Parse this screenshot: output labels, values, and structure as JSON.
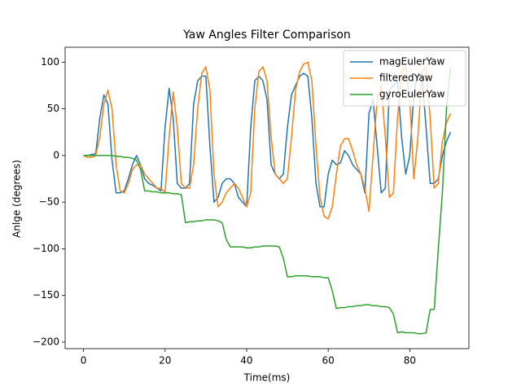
{
  "chart_data": {
    "type": "line",
    "title": "Yaw Angles Filter Comparison",
    "x_label": "Time(ms)",
    "y_label": "Anlge (degrees)",
    "x": [
      0,
      1,
      2,
      3,
      4,
      5,
      6,
      7,
      8,
      9,
      10,
      11,
      12,
      13,
      14,
      15,
      16,
      17,
      18,
      19,
      20,
      21,
      22,
      23,
      24,
      25,
      26,
      27,
      28,
      29,
      30,
      31,
      32,
      33,
      34,
      35,
      36,
      37,
      38,
      39,
      40,
      41,
      42,
      43,
      44,
      45,
      46,
      47,
      48,
      49,
      50,
      51,
      52,
      53,
      54,
      55,
      56,
      57,
      58,
      59,
      60,
      61,
      62,
      63,
      64,
      65,
      66,
      67,
      68,
      69,
      70,
      71,
      72,
      73,
      74,
      75,
      76,
      77,
      78,
      79,
      80,
      81,
      82,
      83,
      84,
      85,
      86,
      87,
      88,
      89,
      90
    ],
    "series": [
      {
        "name": "magEulerYaw",
        "color": "#1f77b4",
        "values": [
          0,
          0,
          1,
          2,
          40,
          65,
          55,
          -5,
          -40,
          -40,
          -38,
          -25,
          -10,
          0,
          -10,
          -25,
          -30,
          -32,
          -35,
          -38,
          30,
          72,
          40,
          -30,
          -35,
          -35,
          -30,
          55,
          80,
          85,
          85,
          10,
          -50,
          -45,
          -30,
          -25,
          -25,
          -30,
          -45,
          -50,
          -55,
          30,
          80,
          85,
          80,
          60,
          -10,
          -20,
          -25,
          -20,
          30,
          65,
          75,
          85,
          88,
          85,
          40,
          -30,
          -55,
          -55,
          -20,
          -5,
          -10,
          -8,
          5,
          0,
          -10,
          -15,
          -20,
          -40,
          45,
          60,
          10,
          -40,
          -35,
          70,
          75,
          80,
          20,
          -20,
          0,
          65,
          88,
          85,
          30,
          -30,
          -30,
          -25,
          0,
          15,
          25
        ]
      },
      {
        "name": "filteredYaw",
        "color": "#ff7f0e",
        "values": [
          0,
          -2,
          -2,
          0,
          20,
          55,
          70,
          50,
          -10,
          -38,
          -40,
          -30,
          -15,
          -10,
          -10,
          -20,
          -25,
          -30,
          -35,
          -35,
          -40,
          20,
          68,
          30,
          -30,
          -35,
          -35,
          -10,
          50,
          88,
          95,
          70,
          -20,
          -55,
          -50,
          -40,
          -35,
          -30,
          -35,
          -45,
          -55,
          -40,
          50,
          90,
          95,
          80,
          20,
          -20,
          -25,
          -30,
          -25,
          20,
          70,
          90,
          98,
          100,
          80,
          10,
          -45,
          -65,
          -68,
          -55,
          -20,
          10,
          18,
          18,
          5,
          -10,
          -20,
          -35,
          -60,
          0,
          60,
          75,
          20,
          -45,
          -40,
          40,
          90,
          95,
          60,
          -25,
          20,
          90,
          95,
          40,
          -35,
          -30,
          15,
          35,
          45
        ]
      },
      {
        "name": "gyroEulerYaw",
        "color": "#2ca02c",
        "values": [
          0,
          0,
          0,
          0,
          0,
          0,
          0,
          0,
          -1,
          -1,
          -2,
          -2,
          -3,
          -5,
          -15,
          -38,
          -38,
          -39,
          -39,
          -40,
          -40,
          -40,
          -41,
          -41,
          -42,
          -72,
          -71,
          -71,
          -70,
          -70,
          -69,
          -69,
          -69,
          -70,
          -72,
          -90,
          -98,
          -98,
          -98,
          -98,
          -99,
          -99,
          -98,
          -98,
          -97,
          -97,
          -97,
          -97,
          -98,
          -110,
          -130,
          -130,
          -129,
          -129,
          -129,
          -129,
          -130,
          -130,
          -130,
          -131,
          -131,
          -145,
          -164,
          -163,
          -163,
          -162,
          -162,
          -161,
          -161,
          -160,
          -160,
          -161,
          -161,
          -162,
          -162,
          -163,
          -170,
          -190,
          -189,
          -190,
          -190,
          -190,
          -191,
          -191,
          -190,
          -165,
          -165,
          -100,
          -40,
          50,
          95
        ]
      }
    ],
    "xlim": [
      -4.5,
      94.5
    ],
    "ylim": [
      -207,
      116
    ],
    "xticks": [
      0,
      20,
      40,
      60,
      80
    ],
    "yticks": [
      {
        "value": -200,
        "label": "−200"
      },
      {
        "value": -150,
        "label": "−150"
      },
      {
        "value": -100,
        "label": "−100"
      },
      {
        "value": -50,
        "label": "−50"
      },
      0,
      50,
      100
    ],
    "grid": false,
    "legend": "upper right"
  }
}
